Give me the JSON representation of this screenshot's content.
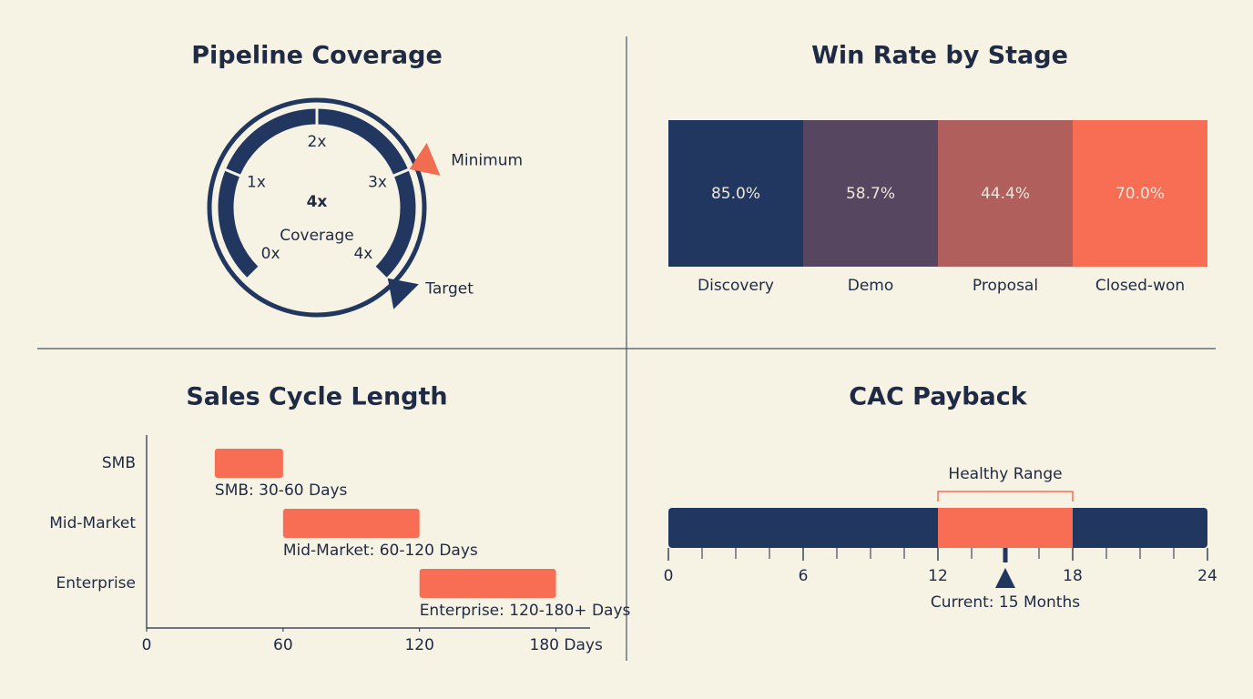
{
  "chart_data": [
    {
      "type": "gauge",
      "title": "Pipeline Coverage",
      "value": 4,
      "value_label": "4x",
      "label": "Coverage",
      "ylim": [
        0,
        4
      ],
      "yticks": [
        {
          "value": 0,
          "label": "0x"
        },
        {
          "value": 1,
          "label": "1x"
        },
        {
          "value": 2,
          "label": "2x"
        },
        {
          "value": 3,
          "label": "3x"
        },
        {
          "value": 4,
          "label": "4x"
        }
      ],
      "color": "#22375f",
      "markers": [
        {
          "name": "Minimum",
          "value": 3,
          "color": "#f26c52"
        },
        {
          "name": "Target",
          "value": 4,
          "color": "#22375f"
        }
      ]
    },
    {
      "type": "bar",
      "title": "Win Rate by Stage",
      "categories": [
        "Discovery",
        "Demo",
        "Proposal",
        "Closed-won"
      ],
      "values": [
        85.0,
        58.7,
        44.4,
        70.0
      ],
      "value_labels": [
        "85.0%",
        "58.7%",
        "44.4%",
        "70.0%"
      ],
      "colors": [
        "#22375f",
        "#564660",
        "#b05f5c",
        "#f76e54"
      ]
    },
    {
      "type": "range_bar",
      "title": "Sales Cycle Length",
      "categories": [
        "SMB",
        "Mid-Market",
        "Enterprise"
      ],
      "starts": [
        30,
        60,
        120
      ],
      "ends": [
        60,
        120,
        180
      ],
      "value_labels": [
        "SMB: 30-60 Days",
        "Mid-Market: 60-120 Days",
        "Enterprise: 120-180+ Days"
      ],
      "color": "#f76e54",
      "xlim": [
        0,
        195
      ],
      "xticks": [
        0,
        60,
        120,
        {
          "value": 180,
          "label": "180 Days"
        }
      ]
    },
    {
      "type": "bullet",
      "title": "CAC Payback",
      "xlim": [
        0,
        24
      ],
      "xticks": [
        0,
        6,
        12,
        18,
        24
      ],
      "xminorticks": [
        1.5,
        3,
        4.5,
        7.5,
        9,
        10.5,
        13.5,
        15,
        16.5,
        19.5,
        21,
        22.5
      ],
      "color": "#22375f",
      "healthy_range": [
        12,
        18
      ],
      "healthy_label": "Healthy Range",
      "healthy_color": "#f76e54",
      "current": 15,
      "current_label": "Current: 15 Months"
    }
  ]
}
